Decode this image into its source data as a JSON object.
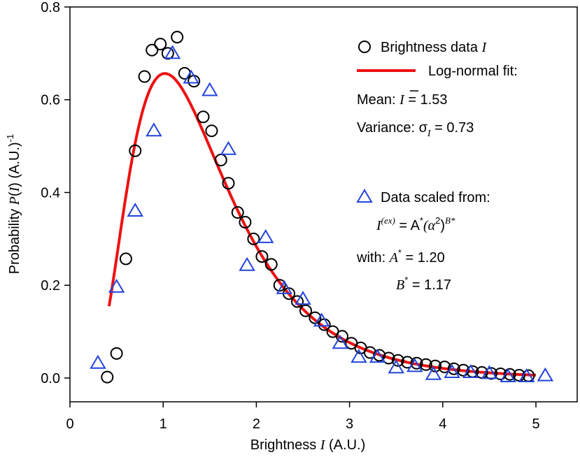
{
  "chart_data": {
    "type": "scatter",
    "title": "",
    "xlabel": "Brightness I (A.U.)",
    "ylabel": "Probability P(I) (A.U.)-1",
    "xlim": [
      0,
      5.5
    ],
    "ylim": [
      -0.05,
      0.8
    ],
    "xticks": [
      0,
      1,
      2,
      3,
      4,
      5
    ],
    "yticks": [
      0.0,
      0.2,
      0.4,
      0.6,
      0.8
    ],
    "xtick_labels": [
      "0",
      "1",
      "2",
      "3",
      "4",
      "5"
    ],
    "ytick_labels": [
      "0.0",
      "0.2",
      "0.4",
      "0.6",
      "0.8"
    ],
    "grid": false,
    "legend_position": "top-right",
    "series": [
      {
        "name": "Brightness data I",
        "marker": "circle",
        "color": "#000000",
        "x": [
          0.4,
          0.5,
          0.6,
          0.7,
          0.8,
          0.88,
          0.97,
          1.05,
          1.15,
          1.23,
          1.33,
          1.43,
          1.52,
          1.62,
          1.7,
          1.8,
          1.88,
          1.97,
          2.06,
          2.16,
          2.25,
          2.35,
          2.44,
          2.53,
          2.63,
          2.73,
          2.82,
          2.92,
          3.02,
          3.12,
          3.22,
          3.32,
          3.42,
          3.52,
          3.62,
          3.72,
          3.82,
          3.92,
          4.02,
          4.12,
          4.22,
          4.32,
          4.42,
          4.52,
          4.62,
          4.72,
          4.82,
          4.92
        ],
        "y": [
          0.002,
          0.053,
          0.257,
          0.49,
          0.65,
          0.707,
          0.72,
          0.7,
          0.735,
          0.657,
          0.64,
          0.563,
          0.533,
          0.47,
          0.42,
          0.357,
          0.336,
          0.3,
          0.262,
          0.245,
          0.2,
          0.182,
          0.165,
          0.145,
          0.13,
          0.115,
          0.1,
          0.09,
          0.075,
          0.065,
          0.055,
          0.049,
          0.043,
          0.038,
          0.034,
          0.032,
          0.029,
          0.026,
          0.024,
          0.02,
          0.017,
          0.014,
          0.012,
          0.01,
          0.009,
          0.008,
          0.006,
          0.005
        ]
      },
      {
        "name": "Data scaled from: I(ex) = A*(a2)B*",
        "marker": "triangle",
        "color": "#2244dd",
        "x": [
          0.3,
          0.5,
          0.7,
          0.9,
          1.1,
          1.3,
          1.5,
          1.7,
          1.9,
          2.1,
          2.3,
          2.5,
          2.7,
          2.9,
          3.1,
          3.3,
          3.5,
          3.7,
          3.9,
          4.1,
          4.3,
          4.5,
          4.7,
          4.9,
          5.1
        ],
        "y": [
          0.032,
          0.196,
          0.36,
          0.533,
          0.7,
          0.647,
          0.62,
          0.493,
          0.243,
          0.303,
          0.193,
          0.17,
          0.123,
          0.075,
          0.045,
          0.045,
          0.022,
          0.025,
          0.008,
          0.012,
          0.012,
          0.01,
          0.003,
          0.003,
          0.005
        ]
      },
      {
        "name": "Log-normal fit",
        "kind": "line",
        "color": "#ee1111",
        "mean": 1.53,
        "variance": 0.73,
        "x_range": [
          0.42,
          5.0
        ]
      }
    ],
    "legend": {
      "circle_label": "Brightness data ",
      "circle_label_var": "I",
      "fit_label": "Log-normal fit:",
      "mean_label": "Mean: ",
      "mean_var": "I",
      "mean_value": "= 1.53",
      "variance_label": "Variance: σ",
      "variance_sub": "I",
      "variance_value": "= 0.73",
      "triangle_label": "Data scaled from:",
      "formula_I": "I",
      "formula_sup": "(ex)",
      "formula_rest": " = A",
      "formula_star": "*",
      "formula_alpha": "(α",
      "formula_two": "2",
      "formula_close": ")",
      "formula_B": "B*",
      "with_label": "with: ",
      "with_A": "A",
      "with_A_star": "*",
      "with_A_value": " = 1.20",
      "with_B": "B",
      "with_B_star": "*",
      "with_B_value": " = 1.17"
    },
    "axis_text": {
      "x_prefix": "Brightness ",
      "x_var": "I",
      "x_suffix": " (A.U.)",
      "y_prefix": "Probability ",
      "y_var": "P",
      "y_open": "(",
      "y_var2": "I",
      "y_close": ") (A.U.)",
      "y_sup": "-1"
    }
  }
}
